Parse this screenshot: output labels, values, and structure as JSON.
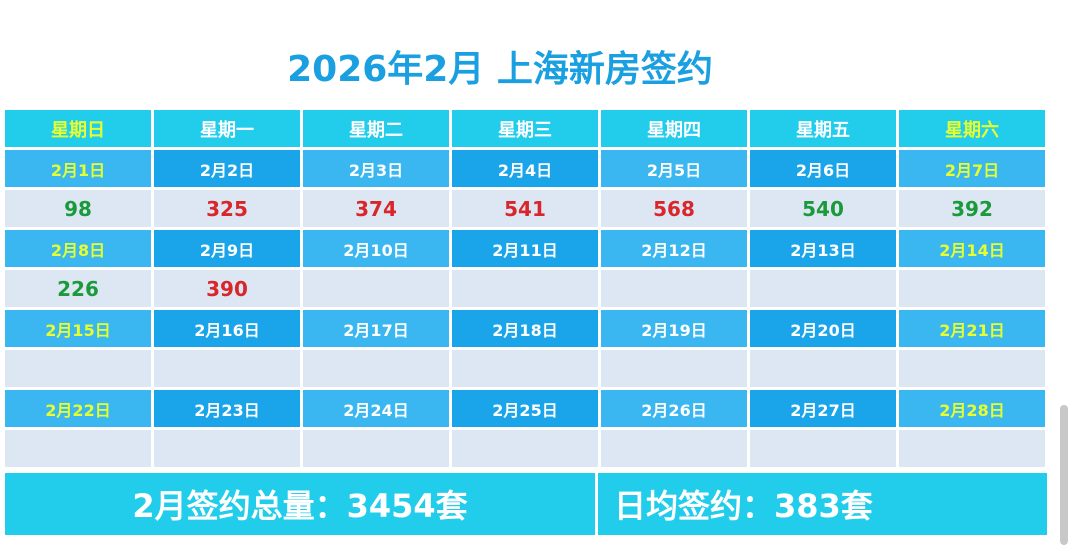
{
  "header": {
    "title": "2026年2月 上海新房签约"
  },
  "weekdays": [
    "星期日",
    "星期一",
    "星期二",
    "星期三",
    "星期四",
    "星期五",
    "星期六"
  ],
  "weeks": [
    {
      "dates": [
        "2月1日",
        "2月2日",
        "2月3日",
        "2月4日",
        "2月5日",
        "2月6日",
        "2月7日"
      ],
      "values": [
        98,
        325,
        374,
        541,
        568,
        540,
        392
      ],
      "value_colors": [
        "#1a9a3a",
        "#d8262b",
        "#d8262b",
        "#d8262b",
        "#d8262b",
        "#1a9a3a",
        "#1a9a3a"
      ]
    },
    {
      "dates": [
        "2月8日",
        "2月9日",
        "2月10日",
        "2月11日",
        "2月12日",
        "2月13日",
        "2月14日"
      ],
      "values": [
        226,
        390,
        null,
        null,
        null,
        null,
        null
      ],
      "value_colors": [
        "#1a9a3a",
        "#d8262b",
        null,
        null,
        null,
        null,
        null
      ]
    },
    {
      "dates": [
        "2月15日",
        "2月16日",
        "2月17日",
        "2月18日",
        "2月19日",
        "2月20日",
        "2月21日"
      ],
      "values": [
        null,
        null,
        null,
        null,
        null,
        null,
        null
      ],
      "value_colors": [
        null,
        null,
        null,
        null,
        null,
        null,
        null
      ]
    },
    {
      "dates": [
        "2月22日",
        "2月23日",
        "2月24日",
        "2月25日",
        "2月26日",
        "2月27日",
        "2月28日"
      ],
      "values": [
        null,
        null,
        null,
        null,
        null,
        null,
        null
      ],
      "value_colors": [
        null,
        null,
        null,
        null,
        null,
        null,
        null
      ]
    }
  ],
  "footer": {
    "total": "2月签约总量：3454套",
    "average": "日均签约：383套"
  }
}
